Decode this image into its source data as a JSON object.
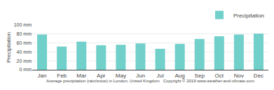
{
  "chart_data": {
    "type": "bar",
    "categories": [
      "Jan",
      "Feb",
      "Mar",
      "Apr",
      "May",
      "Jun",
      "Jul",
      "Aug",
      "Sep",
      "Oct",
      "Nov",
      "Dec"
    ],
    "series": [
      {
        "name": "Precipitation",
        "color": "#72d0cb",
        "values": [
          79,
          52,
          63,
          55,
          56,
          59,
          47,
          58,
          69,
          75,
          79,
          81
        ]
      }
    ],
    "ylabel": "Precipitation",
    "xlabel": "Average precipitation (rain/snow) in London, United Kingdom   Copyright © 2019 www.weather-and-climate.com",
    "ylim": [
      0,
      100
    ],
    "yticks": [
      {
        "value": 0,
        "label": "0 mm"
      },
      {
        "value": 20,
        "label": "20 mm"
      },
      {
        "value": 40,
        "label": "40 mm"
      },
      {
        "value": 60,
        "label": "60 mm"
      },
      {
        "value": 80,
        "label": "80 mm"
      },
      {
        "value": 100,
        "label": "100 mm"
      }
    ],
    "grid": true,
    "legend": "upper right"
  }
}
